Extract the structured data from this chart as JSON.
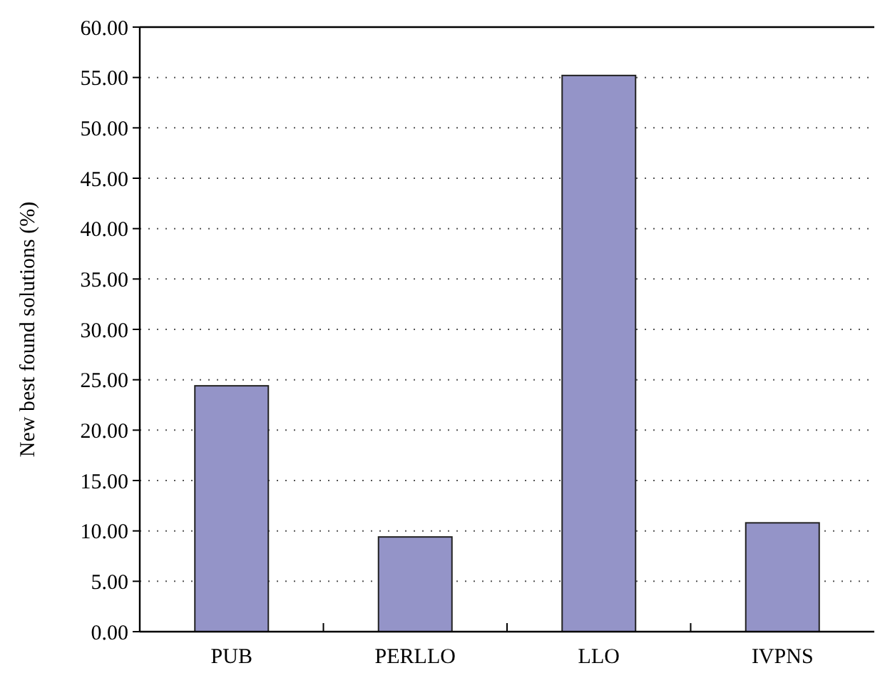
{
  "chart_data": {
    "type": "bar",
    "ylabel": "New best found solutions (%)",
    "categories": [
      "PUB",
      "PERLLO",
      "LLO",
      "IVPNS"
    ],
    "values": [
      24.4,
      9.4,
      55.2,
      10.8
    ],
    "color": "#9494c8",
    "ylim": [
      0,
      60
    ],
    "yticks": [
      {
        "value": 0,
        "label": "0.00"
      },
      {
        "value": 5,
        "label": "5.00"
      },
      {
        "value": 10,
        "label": "10.00"
      },
      {
        "value": 15,
        "label": "15.00"
      },
      {
        "value": 20,
        "label": "20.00"
      },
      {
        "value": 25,
        "label": "25.00"
      },
      {
        "value": 30,
        "label": "30.00"
      },
      {
        "value": 35,
        "label": "35.00"
      },
      {
        "value": 40,
        "label": "40.00"
      },
      {
        "value": 45,
        "label": "45.00"
      },
      {
        "value": 50,
        "label": "50.00"
      },
      {
        "value": 55,
        "label": "55.00"
      },
      {
        "value": 60,
        "label": "60.00"
      }
    ],
    "grid": "y",
    "line_style": "dotted"
  }
}
